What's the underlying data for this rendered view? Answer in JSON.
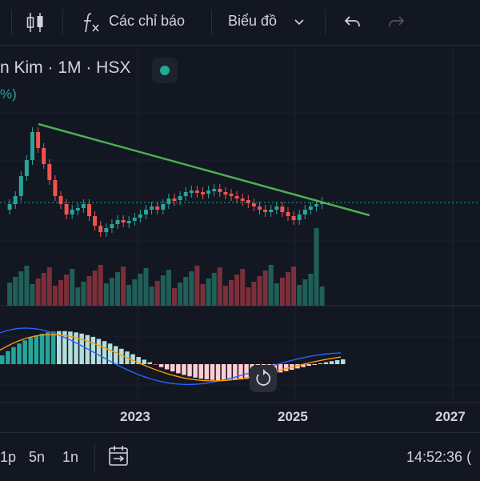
{
  "toolbar": {
    "indicators_label": "Các chỉ báo",
    "chart_type_label": "Biểu đồ"
  },
  "legend": {
    "symbol_partial": "n Kim · 1M · HSX",
    "change_partial": "%)"
  },
  "time_axis": {
    "labels": [
      "2023",
      "2025",
      "2027"
    ]
  },
  "bottom_bar": {
    "ranges": [
      "1p",
      "5n",
      "1n"
    ],
    "clock": "14:52:36 ("
  },
  "colors": {
    "up": "#26a69a",
    "down": "#ef5350",
    "trendline": "#4caf50",
    "macd_line": "#2962ff",
    "signal_line": "#ff9800",
    "background": "#131722"
  },
  "icons": {
    "candle": "candlestick-icon",
    "fx": "fx-icon",
    "undo": "undo-icon",
    "redo": "redo-icon",
    "reset": "reset-icon",
    "calendar": "calendar-icon"
  }
}
